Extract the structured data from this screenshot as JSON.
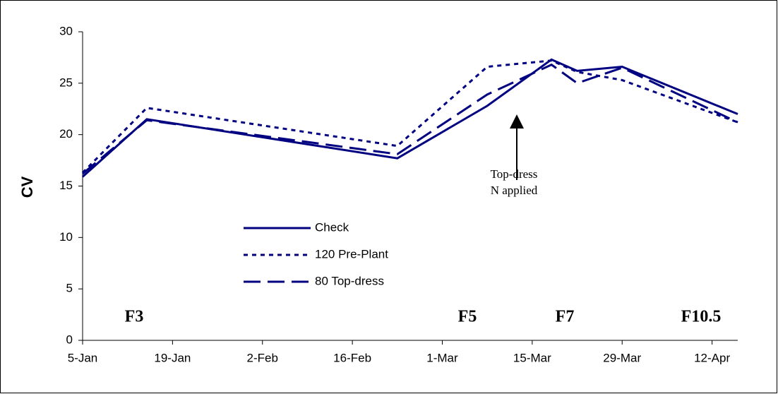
{
  "chart_data": {
    "type": "line",
    "y_label": "CV",
    "x": [
      0,
      10,
      49,
      63,
      73,
      77,
      84,
      102
    ],
    "xlim": [
      0,
      102
    ],
    "xticks": [
      {
        "value": 0,
        "label": "5-Jan"
      },
      {
        "value": 14,
        "label": "19-Jan"
      },
      {
        "value": 28,
        "label": "2-Feb"
      },
      {
        "value": 42,
        "label": "16-Feb"
      },
      {
        "value": 56,
        "label": "1-Mar"
      },
      {
        "value": 70,
        "label": "15-Mar"
      },
      {
        "value": 84,
        "label": "29-Mar"
      },
      {
        "value": 98,
        "label": "12-Apr"
      }
    ],
    "ylim": [
      0,
      30
    ],
    "yticks": [
      0,
      5,
      10,
      15,
      20,
      25,
      30
    ],
    "series": [
      {
        "name": "Check",
        "color": "#000080",
        "dash": "solid",
        "values": [
          15.9,
          21.5,
          17.7,
          22.8,
          27.3,
          26.2,
          26.6,
          22.0
        ]
      },
      {
        "name": "120 Pre-Plant",
        "color": "#000080",
        "dash": "dotted",
        "values": [
          16.3,
          22.6,
          18.9,
          26.6,
          27.2,
          26.1,
          25.3,
          21.2
        ]
      },
      {
        "name": "80 Top-dress",
        "color": "#000080",
        "dash": "dashed",
        "values": [
          16.2,
          21.4,
          18.1,
          23.9,
          26.8,
          25.0,
          26.5,
          21.2
        ]
      }
    ],
    "annotation": [
      "Top-dress",
      "N applied"
    ],
    "stage_labels": [
      "F3",
      "F5",
      "F7",
      "F10.5"
    ]
  }
}
